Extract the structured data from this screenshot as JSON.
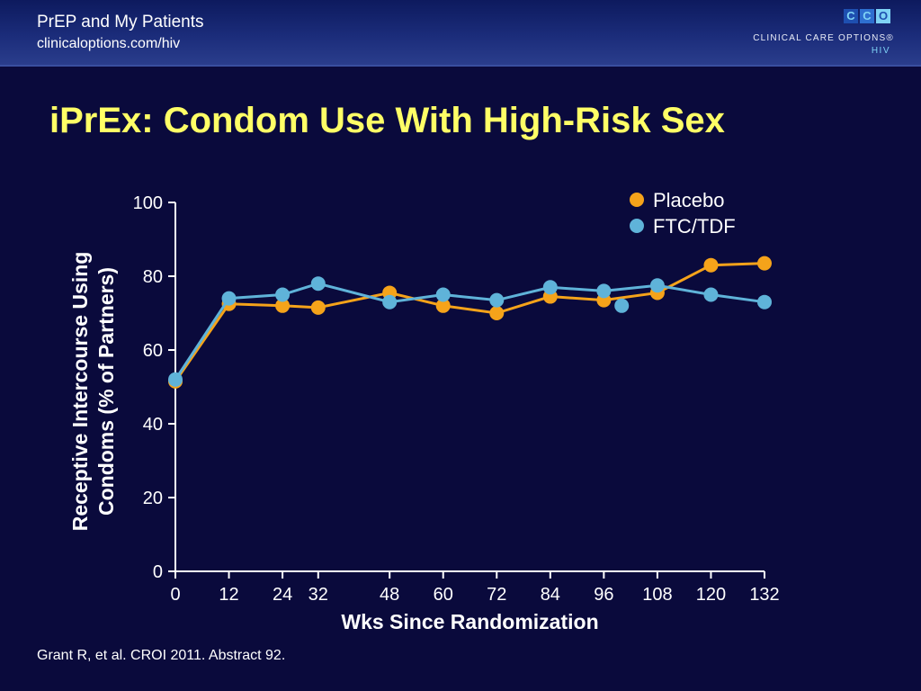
{
  "header": {
    "title": "PrEP and My Patients",
    "url": "clinicaloptions.com/hiv",
    "logo_letters": [
      "C",
      "C",
      "O"
    ],
    "logo_text": "CLINICAL CARE OPTIONS®",
    "logo_sub": "HIV"
  },
  "slide": {
    "title": "iPrEx: Condom Use With High-Risk Sex",
    "citation": "Grant R, et al. CROI 2011. Abstract 92."
  },
  "colors": {
    "background": "#0a0a3c",
    "title": "#ffff66",
    "placebo": "#f5a31a",
    "ftc_tdf": "#5fb3d9"
  },
  "chart_data": {
    "type": "line",
    "xlabel": "Wks Since Randomization",
    "ylabel_lines": [
      "Receptive Intercourse Using",
      "Condoms (% of Partners)"
    ],
    "xlim": [
      0,
      132
    ],
    "ylim": [
      0,
      100
    ],
    "xticks": [
      0,
      12,
      24,
      32,
      48,
      60,
      72,
      84,
      96,
      108,
      120,
      132
    ],
    "yticks": [
      0,
      20,
      40,
      60,
      80,
      100
    ],
    "legend_position": "top-right",
    "series": [
      {
        "name": "Placebo",
        "points": [
          [
            0,
            51.5
          ],
          [
            12,
            72.5
          ],
          [
            24,
            72
          ],
          [
            32,
            71.5
          ],
          [
            48,
            75.5
          ],
          [
            60,
            72
          ],
          [
            72,
            70
          ],
          [
            84,
            74.5
          ],
          [
            96,
            73.5
          ],
          [
            108,
            75.5
          ],
          [
            120,
            83
          ],
          [
            132,
            83.5
          ]
        ]
      },
      {
        "name": "FTC/TDF",
        "points": [
          [
            0,
            52
          ],
          [
            12,
            74
          ],
          [
            24,
            75
          ],
          [
            32,
            78
          ],
          [
            48,
            73
          ],
          [
            60,
            75
          ],
          [
            72,
            73.5
          ],
          [
            84,
            77
          ],
          [
            96,
            76
          ],
          [
            108,
            77.5
          ],
          [
            120,
            75
          ],
          [
            132,
            73
          ]
        ],
        "extra_points": [
          [
            100,
            72
          ]
        ]
      }
    ]
  }
}
